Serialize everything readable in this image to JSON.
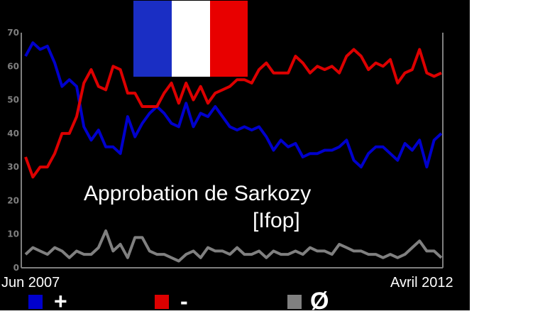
{
  "chart_data": {
    "type": "line",
    "title": "Approbation de Sarkozy",
    "subtitle": "[Ifop]",
    "x_start_label": "Jun 2007",
    "x_end_label": "Avril 2012",
    "ylim": [
      0,
      70
    ],
    "yticks": [
      "0",
      "10",
      "20",
      "30",
      "40",
      "50",
      "60",
      "70"
    ],
    "grid": false,
    "legend_position": "bottom",
    "series": [
      {
        "name": "+",
        "color": "#0000cc",
        "values": [
          63,
          67,
          65,
          66,
          61,
          54,
          56,
          54,
          42,
          38,
          41,
          36,
          36,
          34,
          45,
          39,
          43,
          46,
          48,
          46,
          43,
          42,
          49,
          42,
          46,
          45,
          48,
          45,
          42,
          41,
          42,
          41,
          42,
          39,
          35,
          38,
          36,
          37,
          33,
          34,
          34,
          35,
          35,
          36,
          38,
          32,
          30,
          34,
          36,
          36,
          34,
          32,
          37,
          35,
          38,
          30,
          38,
          40
        ]
      },
      {
        "name": "-",
        "color": "#dd0000",
        "values": [
          33,
          27,
          30,
          30,
          34,
          40,
          40,
          45,
          55,
          59,
          54,
          53,
          60,
          59,
          52,
          52,
          48,
          48,
          48,
          52,
          55,
          49,
          55,
          50,
          54,
          49,
          52,
          53,
          54,
          56,
          56,
          55,
          59,
          61,
          58,
          58,
          58,
          63,
          61,
          58,
          60,
          59,
          60,
          58,
          63,
          65,
          63,
          59,
          61,
          60,
          62,
          55,
          58,
          59,
          65,
          58,
          57,
          58
        ]
      },
      {
        "name": "Ø",
        "color": "#808080",
        "values": [
          4,
          6,
          5,
          4,
          6,
          5,
          3,
          5,
          4,
          4,
          6,
          11,
          5,
          7,
          3,
          9,
          9,
          5,
          4,
          4,
          3,
          2,
          4,
          5,
          3,
          6,
          5,
          5,
          4,
          6,
          4,
          4,
          5,
          3,
          5,
          4,
          4,
          5,
          4,
          6,
          5,
          5,
          4,
          7,
          6,
          5,
          5,
          4,
          4,
          3,
          4,
          3,
          4,
          6,
          8,
          5,
          5,
          3
        ]
      }
    ],
    "legend": [
      {
        "label": "+",
        "color": "#0000cc"
      },
      {
        "label": "-",
        "color": "#dd0000"
      },
      {
        "label": "Ø",
        "color": "#808080"
      }
    ]
  },
  "flag": {
    "colors": [
      "#1a2ec4",
      "#ffffff",
      "#e80000"
    ]
  }
}
